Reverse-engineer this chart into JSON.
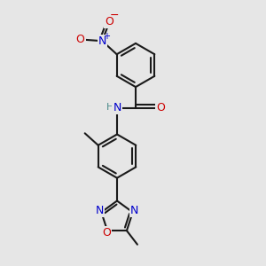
{
  "bg_color": "#e6e6e6",
  "bond_color": "#1a1a1a",
  "bond_width": 1.5,
  "atom_colors": {
    "N": "#0000cc",
    "O": "#cc0000",
    "H": "#4a8a8a",
    "C": "#1a1a1a"
  },
  "figsize": [
    3.0,
    3.0
  ],
  "dpi": 100,
  "xlim": [
    0,
    10
  ],
  "ylim": [
    0,
    10
  ]
}
